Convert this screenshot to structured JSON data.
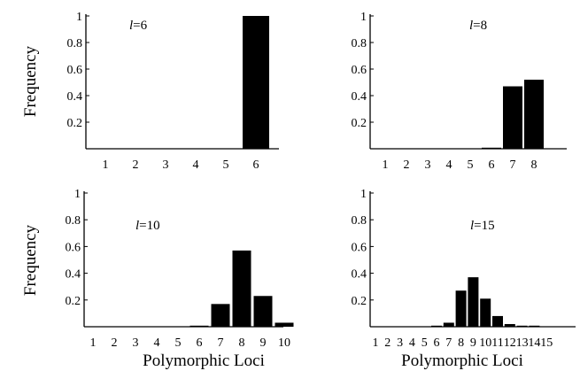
{
  "colors": {
    "bar": "#000000",
    "axis": "#000000",
    "background": "#ffffff"
  },
  "labels": {
    "ylabel_top": "Frequency",
    "ylabel_bottom": "Frequency",
    "xlabel_left": "Polymorphic Loci",
    "xlabel_right": "Polymorphic Loci"
  },
  "chart_data": [
    {
      "type": "bar",
      "annotation": "l=6",
      "annotation_var": "l",
      "annotation_value": "=6",
      "categories": [
        "1",
        "2",
        "3",
        "4",
        "5",
        "6"
      ],
      "values": [
        0,
        0,
        0,
        0,
        0,
        1.0
      ],
      "ylim": [
        0,
        1
      ],
      "yticks": [
        "1",
        "0.8",
        "0.6",
        "0.4",
        "0.2"
      ],
      "xlabel": "",
      "ylabel": "Frequency"
    },
    {
      "type": "bar",
      "annotation": "l=8",
      "annotation_var": "l",
      "annotation_value": "=8",
      "categories": [
        "1",
        "2",
        "3",
        "4",
        "5",
        "6",
        "7",
        "8"
      ],
      "values": [
        0,
        0,
        0,
        0,
        0,
        0.005,
        0.47,
        0.52
      ],
      "ylim": [
        0,
        1
      ],
      "yticks": [
        "1",
        "0.8",
        "0.6",
        "0.4",
        "0.2"
      ],
      "xlabel": "",
      "ylabel": ""
    },
    {
      "type": "bar",
      "annotation": "l=10",
      "annotation_var": "l",
      "annotation_value": "=10",
      "categories": [
        "1",
        "2",
        "3",
        "4",
        "5",
        "6",
        "7",
        "8",
        "9",
        "10"
      ],
      "values": [
        0,
        0,
        0,
        0,
        0,
        0.005,
        0.17,
        0.57,
        0.23,
        0.03
      ],
      "ylim": [
        0,
        1
      ],
      "yticks": [
        "1",
        "0.8",
        "0.6",
        "0.4",
        "0.2"
      ],
      "xlabel": "Polymorphic Loci",
      "ylabel": "Frequency"
    },
    {
      "type": "bar",
      "annotation": "l=15",
      "annotation_var": "l",
      "annotation_value": "=15",
      "categories": [
        "1",
        "2",
        "3",
        "4",
        "5",
        "6",
        "7",
        "8",
        "9",
        "10",
        "11",
        "12",
        "13",
        "14",
        "15"
      ],
      "values": [
        0,
        0,
        0,
        0,
        0,
        0.002,
        0.03,
        0.27,
        0.37,
        0.21,
        0.08,
        0.02,
        0.005,
        0.002,
        0
      ],
      "ylim": [
        0,
        1
      ],
      "yticks": [
        "1",
        "0.8",
        "0.6",
        "0.4",
        "0.2"
      ],
      "xlabel": "Polymorphic Loci",
      "ylabel": ""
    }
  ]
}
